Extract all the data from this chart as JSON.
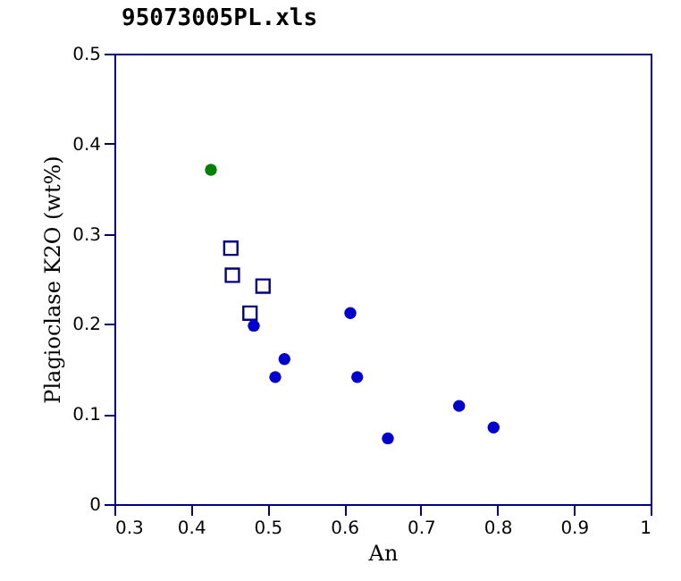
{
  "chart_data": {
    "type": "scatter",
    "title": "95073005PL.xls",
    "xlabel": "An",
    "ylabel": "Plagioclase K2O (wt%)",
    "xlim": [
      0.3,
      1
    ],
    "xticks": [
      0.3,
      0.4,
      0.5,
      0.6,
      0.7,
      0.8,
      0.9,
      1
    ],
    "ylim": [
      0,
      0.5
    ],
    "yticks": [
      0,
      0.1,
      0.2,
      0.3,
      0.4,
      0.5
    ],
    "grid": false,
    "series": [
      {
        "color": "#008000",
        "marker": "circle",
        "x": [
          0.426
        ],
        "values": [
          0.371
        ]
      },
      {
        "color": "#000080",
        "marker": "square",
        "x": [
          0.452,
          0.454,
          0.494,
          0.477
        ],
        "values": [
          0.284,
          0.254,
          0.242,
          0.212
        ]
      },
      {
        "color": "#0000cc",
        "marker": "circle",
        "x": [
          0.482,
          0.608,
          0.522,
          0.51,
          0.617,
          0.657,
          0.75,
          0.795
        ],
        "values": [
          0.198,
          0.212,
          0.161,
          0.141,
          0.141,
          0.073,
          0.109,
          0.085
        ]
      }
    ]
  }
}
